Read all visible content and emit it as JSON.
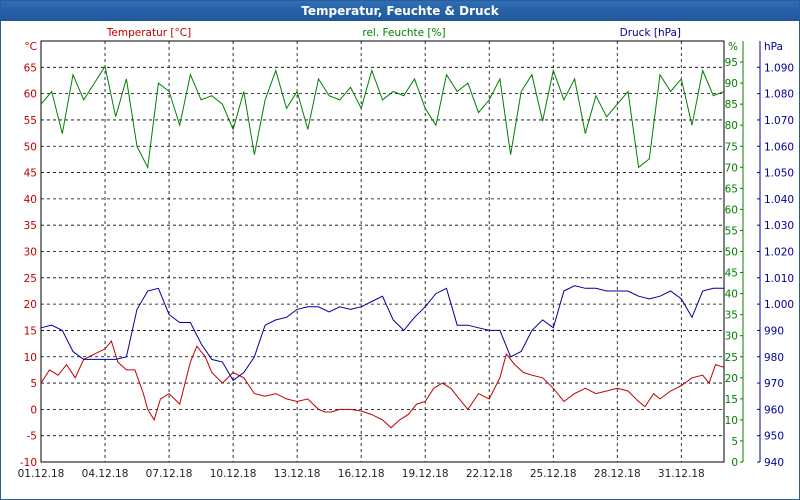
{
  "window": {
    "title": "Temperatur, Feuchte & Druck"
  },
  "colors": {
    "temperature": "#c00000",
    "humidity": "#008000",
    "pressure": "#000099",
    "grid": "#000000",
    "axis_text": "#222222"
  },
  "chart_data": {
    "type": "line",
    "title": "Temperatur, Feuchte & Druck",
    "axes": {
      "left": {
        "label": "°C",
        "series_label": "Temperatur [°C]",
        "min": -10,
        "max": 70,
        "step": 5,
        "tick_labels": [
          "-10",
          "-5",
          "0",
          "5",
          "10",
          "15",
          "20",
          "25",
          "30",
          "35",
          "40",
          "45",
          "50",
          "55",
          "60",
          "65"
        ]
      },
      "right1": {
        "label": "%",
        "series_label": "rel. Feuchte [%]",
        "min": 0,
        "max": 100,
        "step": 5,
        "tick_labels": [
          "0",
          "5",
          "10",
          "15",
          "20",
          "25",
          "30",
          "35",
          "40",
          "45",
          "50",
          "55",
          "60",
          "65",
          "70",
          "75",
          "80",
          "85",
          "90",
          "95"
        ]
      },
      "right2": {
        "label": "hPa",
        "series_label": "Druck [hPa]",
        "min": 940,
        "max": 1100,
        "step": 10,
        "tick_labels": [
          "940",
          "950",
          "960",
          "970",
          "980",
          "990",
          "1.000",
          "1.010",
          "1.020",
          "1.030",
          "1.040",
          "1.050",
          "1.060",
          "1.070",
          "1.080",
          "1.090"
        ]
      }
    },
    "x_axis": {
      "min": 0,
      "max": 32,
      "unit": "days since 01.12.18",
      "tick_labels": [
        "01.12.18",
        "04.12.18",
        "07.12.18",
        "10.12.18",
        "13.12.18",
        "16.12.18",
        "19.12.18",
        "22.12.18",
        "25.12.18",
        "28.12.18",
        "31.12.18"
      ]
    },
    "legend": {
      "placement": "top"
    },
    "grid": true,
    "series": [
      {
        "name": "Temperatur [°C]",
        "axis": "left",
        "x": [
          0,
          0.4,
          0.8,
          1.2,
          1.6,
          2,
          2.5,
          3,
          3.3,
          3.6,
          4,
          4.4,
          4.8,
          5,
          5.3,
          5.6,
          6,
          6.5,
          7,
          7.3,
          7.7,
          8,
          8.5,
          9,
          9.5,
          10,
          10.5,
          11,
          11.5,
          12,
          12.5,
          13,
          13.3,
          13.6,
          14,
          14.5,
          15,
          15.5,
          16,
          16.4,
          16.8,
          17.2,
          17.6,
          18,
          18.4,
          18.8,
          19.2,
          19.6,
          20,
          20.5,
          21,
          21.5,
          21.8,
          22.2,
          22.6,
          23,
          23.5,
          24,
          24.5,
          25,
          25.5,
          26,
          26.5,
          27,
          27.5,
          28,
          28.3,
          28.7,
          29,
          29.5,
          30,
          30.5,
          31,
          31.3,
          31.6,
          32
        ],
        "values": [
          5,
          7.5,
          6.5,
          8.5,
          6,
          9.5,
          10.5,
          11.5,
          13,
          9,
          7.5,
          7.5,
          3,
          0,
          -2,
          2,
          3,
          1,
          9,
          12,
          10,
          7,
          5,
          7,
          6,
          3,
          2.5,
          3,
          2,
          1.5,
          2,
          0,
          -0.5,
          -0.5,
          0,
          0,
          -0.3,
          -1,
          -2,
          -3.5,
          -2,
          -1,
          1,
          1.5,
          4,
          5,
          4,
          2,
          0,
          3,
          2,
          6,
          10.5,
          8.5,
          7,
          6.5,
          6,
          4,
          1.5,
          3,
          4,
          3,
          3.5,
          4,
          3.5,
          1.5,
          0.5,
          3,
          2,
          3.5,
          4.5,
          6,
          6.5,
          5,
          8.5,
          8
        ]
      },
      {
        "name": "rel. Feuchte [%]",
        "axis": "right1",
        "x": [
          0,
          0.5,
          1,
          1.5,
          2,
          2.5,
          3,
          3.5,
          4,
          4.5,
          5,
          5.5,
          6,
          6.5,
          7,
          7.5,
          8,
          8.5,
          9,
          9.5,
          10,
          10.5,
          11,
          11.5,
          12,
          12.5,
          13,
          13.5,
          14,
          14.5,
          15,
          15.5,
          16,
          16.5,
          17,
          17.5,
          18,
          18.5,
          19,
          19.5,
          20,
          20.5,
          21,
          21.5,
          22,
          22.5,
          23,
          23.5,
          24,
          24.5,
          25,
          25.5,
          26,
          26.5,
          27,
          27.5,
          28,
          28.5,
          29,
          29.5,
          30,
          30.5,
          31,
          31.5,
          32
        ],
        "values": [
          85,
          88,
          78,
          92,
          86,
          90,
          94,
          82,
          91,
          75,
          70,
          90,
          88,
          80,
          92,
          86,
          87,
          85,
          79,
          88,
          73,
          86,
          93,
          84,
          88,
          79,
          91,
          87,
          86,
          89,
          84,
          93,
          86,
          88,
          87,
          91,
          84,
          80,
          92,
          88,
          90,
          83,
          86,
          91,
          73,
          88,
          92,
          81,
          93,
          86,
          91,
          78,
          87,
          82,
          85,
          88,
          70,
          72,
          92,
          88,
          91,
          80,
          93,
          87,
          88
        ]
      },
      {
        "name": "Druck [hPa]",
        "axis": "right2",
        "x": [
          0,
          0.5,
          1,
          1.5,
          2,
          2.5,
          3,
          3.5,
          4,
          4.5,
          5,
          5.5,
          6,
          6.5,
          7,
          7.5,
          8,
          8.5,
          9,
          9.5,
          10,
          10.5,
          11,
          11.5,
          12,
          12.5,
          13,
          13.5,
          14,
          14.5,
          15,
          15.5,
          16,
          16.5,
          17,
          17.5,
          18,
          18.5,
          19,
          19.5,
          20,
          20.5,
          21,
          21.5,
          22,
          22.5,
          23,
          23.5,
          24,
          24.5,
          25,
          25.5,
          26,
          26.5,
          27,
          27.5,
          28,
          28.5,
          29,
          29.5,
          30,
          30.5,
          31,
          31.5,
          32
        ],
        "values": [
          991,
          992,
          990,
          982,
          979,
          979,
          979,
          979,
          980,
          998,
          1005,
          1006,
          996,
          993,
          993,
          985,
          979,
          978,
          971,
          974,
          980,
          992,
          994,
          995,
          998,
          999,
          999,
          997,
          999,
          998,
          999,
          1001,
          1003,
          994,
          990,
          995,
          999,
          1004,
          1006,
          992,
          992,
          991,
          990,
          990,
          980,
          982,
          990,
          994,
          991,
          1005,
          1007,
          1006,
          1006,
          1005,
          1005,
          1005,
          1003,
          1002,
          1003,
          1005,
          1002,
          995,
          1005,
          1006,
          1006
        ]
      }
    ]
  }
}
